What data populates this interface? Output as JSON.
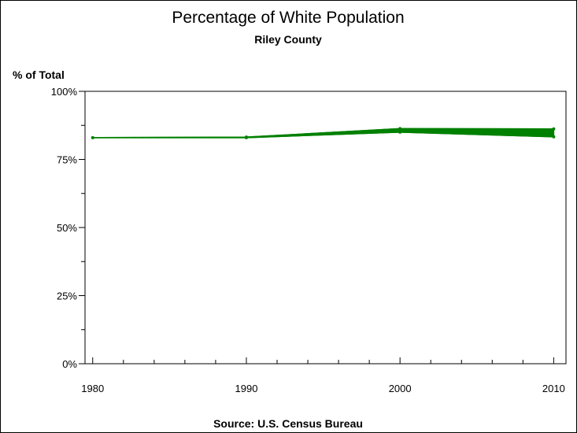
{
  "chart_data": {
    "type": "line",
    "title": "Percentage of White Population",
    "subtitle": "Riley County",
    "ylabel": "% of Total",
    "xlabel": "",
    "footnote": "Source: U.S. Census Bureau",
    "x_ticks": [
      1980,
      1990,
      2000,
      2010
    ],
    "x_tick_labels": [
      "1980",
      "1990",
      "2000",
      "2010"
    ],
    "xlim": [
      1979.5,
      2010.8
    ],
    "x_minor_step": 2,
    "y_ticks": [
      0,
      25,
      50,
      75,
      100
    ],
    "y_tick_labels": [
      "0%",
      "25%",
      "50%",
      "75%",
      "100%"
    ],
    "ylim": [
      0,
      100
    ],
    "y_minor_step": 12.5,
    "grid": false,
    "series": [
      {
        "color": "#008000",
        "points": [
          {
            "x": 1980,
            "low": 83.0,
            "high": 83.0
          },
          {
            "x": 1990,
            "low": 83.0,
            "high": 83.2
          },
          {
            "x": 2000,
            "low": 85.0,
            "high": 86.3
          },
          {
            "x": 2010,
            "low": 83.3,
            "high": 86.2
          }
        ]
      }
    ]
  }
}
